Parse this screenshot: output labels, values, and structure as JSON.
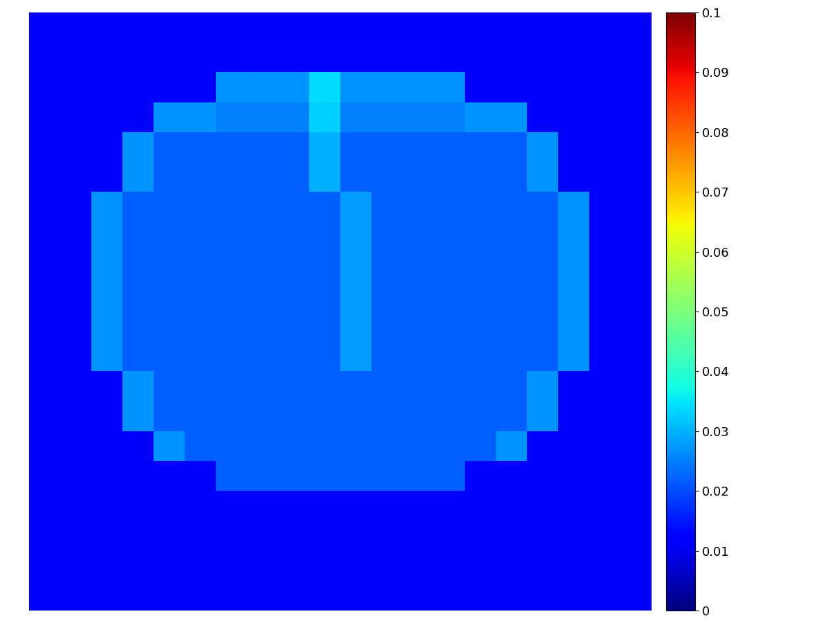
{
  "chart_data": {
    "type": "heatmap",
    "cells": [
      [
        0.012,
        0.012,
        0.012,
        0.012,
        0.012,
        0.012,
        0.012,
        0.012,
        0.012,
        0.012,
        0.012,
        0.012,
        0.012,
        0.012,
        0.012,
        0.012,
        0.012,
        0.012,
        0.012,
        0.012
      ],
      [
        0.012,
        0.012,
        0.012,
        0.012,
        0.012,
        0.012,
        0.012,
        0.013,
        0.013,
        0.013,
        0.013,
        0.013,
        0.013,
        0.012,
        0.012,
        0.012,
        0.012,
        0.012,
        0.012,
        0.012
      ],
      [
        0.012,
        0.012,
        0.012,
        0.012,
        0.012,
        0.012,
        0.027,
        0.027,
        0.027,
        0.034,
        0.027,
        0.027,
        0.027,
        0.027,
        0.012,
        0.012,
        0.012,
        0.012,
        0.012,
        0.012
      ],
      [
        0.012,
        0.012,
        0.012,
        0.012,
        0.027,
        0.027,
        0.025,
        0.025,
        0.025,
        0.033,
        0.025,
        0.025,
        0.025,
        0.025,
        0.027,
        0.027,
        0.012,
        0.012,
        0.012,
        0.012
      ],
      [
        0.012,
        0.012,
        0.012,
        0.027,
        0.022,
        0.022,
        0.022,
        0.022,
        0.022,
        0.03,
        0.022,
        0.022,
        0.022,
        0.022,
        0.022,
        0.022,
        0.027,
        0.012,
        0.012,
        0.012
      ],
      [
        0.012,
        0.012,
        0.012,
        0.027,
        0.022,
        0.022,
        0.022,
        0.022,
        0.022,
        0.03,
        0.022,
        0.022,
        0.022,
        0.022,
        0.022,
        0.022,
        0.027,
        0.012,
        0.012,
        0.012
      ],
      [
        0.012,
        0.012,
        0.027,
        0.022,
        0.022,
        0.022,
        0.022,
        0.022,
        0.022,
        0.022,
        0.028,
        0.022,
        0.022,
        0.022,
        0.022,
        0.022,
        0.022,
        0.027,
        0.012,
        0.012
      ],
      [
        0.012,
        0.012,
        0.027,
        0.022,
        0.022,
        0.022,
        0.022,
        0.022,
        0.022,
        0.022,
        0.028,
        0.022,
        0.022,
        0.022,
        0.022,
        0.022,
        0.022,
        0.027,
        0.012,
        0.012
      ],
      [
        0.012,
        0.012,
        0.027,
        0.022,
        0.022,
        0.022,
        0.022,
        0.022,
        0.022,
        0.022,
        0.028,
        0.022,
        0.022,
        0.022,
        0.022,
        0.022,
        0.022,
        0.027,
        0.012,
        0.012
      ],
      [
        0.012,
        0.012,
        0.027,
        0.022,
        0.022,
        0.022,
        0.022,
        0.022,
        0.022,
        0.022,
        0.028,
        0.022,
        0.022,
        0.022,
        0.022,
        0.022,
        0.022,
        0.027,
        0.012,
        0.012
      ],
      [
        0.012,
        0.012,
        0.027,
        0.022,
        0.022,
        0.022,
        0.022,
        0.022,
        0.022,
        0.022,
        0.028,
        0.022,
        0.022,
        0.022,
        0.022,
        0.022,
        0.022,
        0.027,
        0.012,
        0.012
      ],
      [
        0.012,
        0.012,
        0.027,
        0.022,
        0.022,
        0.022,
        0.022,
        0.022,
        0.022,
        0.022,
        0.028,
        0.022,
        0.022,
        0.022,
        0.022,
        0.022,
        0.022,
        0.027,
        0.012,
        0.012
      ],
      [
        0.012,
        0.012,
        0.012,
        0.027,
        0.022,
        0.022,
        0.022,
        0.022,
        0.022,
        0.022,
        0.022,
        0.022,
        0.022,
        0.022,
        0.022,
        0.022,
        0.027,
        0.012,
        0.012,
        0.012
      ],
      [
        0.012,
        0.012,
        0.012,
        0.027,
        0.022,
        0.022,
        0.022,
        0.022,
        0.022,
        0.022,
        0.022,
        0.022,
        0.022,
        0.022,
        0.022,
        0.022,
        0.027,
        0.012,
        0.012,
        0.012
      ],
      [
        0.012,
        0.012,
        0.012,
        0.012,
        0.027,
        0.022,
        0.022,
        0.022,
        0.022,
        0.022,
        0.022,
        0.022,
        0.022,
        0.022,
        0.022,
        0.027,
        0.012,
        0.012,
        0.012,
        0.012
      ],
      [
        0.012,
        0.012,
        0.012,
        0.012,
        0.012,
        0.012,
        0.022,
        0.022,
        0.022,
        0.022,
        0.022,
        0.022,
        0.022,
        0.022,
        0.012,
        0.012,
        0.012,
        0.012,
        0.012,
        0.012
      ],
      [
        0.011,
        0.011,
        0.011,
        0.011,
        0.011,
        0.011,
        0.011,
        0.011,
        0.011,
        0.011,
        0.011,
        0.011,
        0.011,
        0.011,
        0.011,
        0.011,
        0.011,
        0.011,
        0.011,
        0.011
      ],
      [
        0.011,
        0.011,
        0.011,
        0.011,
        0.011,
        0.011,
        0.011,
        0.011,
        0.011,
        0.011,
        0.011,
        0.011,
        0.011,
        0.011,
        0.011,
        0.011,
        0.011,
        0.011,
        0.011,
        0.011
      ],
      [
        0.011,
        0.011,
        0.011,
        0.011,
        0.011,
        0.011,
        0.011,
        0.011,
        0.011,
        0.011,
        0.011,
        0.011,
        0.011,
        0.011,
        0.011,
        0.011,
        0.011,
        0.011,
        0.011,
        0.011
      ],
      [
        0.011,
        0.011,
        0.011,
        0.011,
        0.011,
        0.011,
        0.011,
        0.011,
        0.011,
        0.011,
        0.011,
        0.011,
        0.011,
        0.011,
        0.011,
        0.011,
        0.011,
        0.011,
        0.011,
        0.011
      ]
    ],
    "colorbar_range": [
      0,
      0.1
    ],
    "colorbar_ticks": [
      0,
      0.01,
      0.02,
      0.03,
      0.04,
      0.05,
      0.06,
      0.07,
      0.08,
      0.09,
      0.1
    ],
    "tick_labels": false
  }
}
